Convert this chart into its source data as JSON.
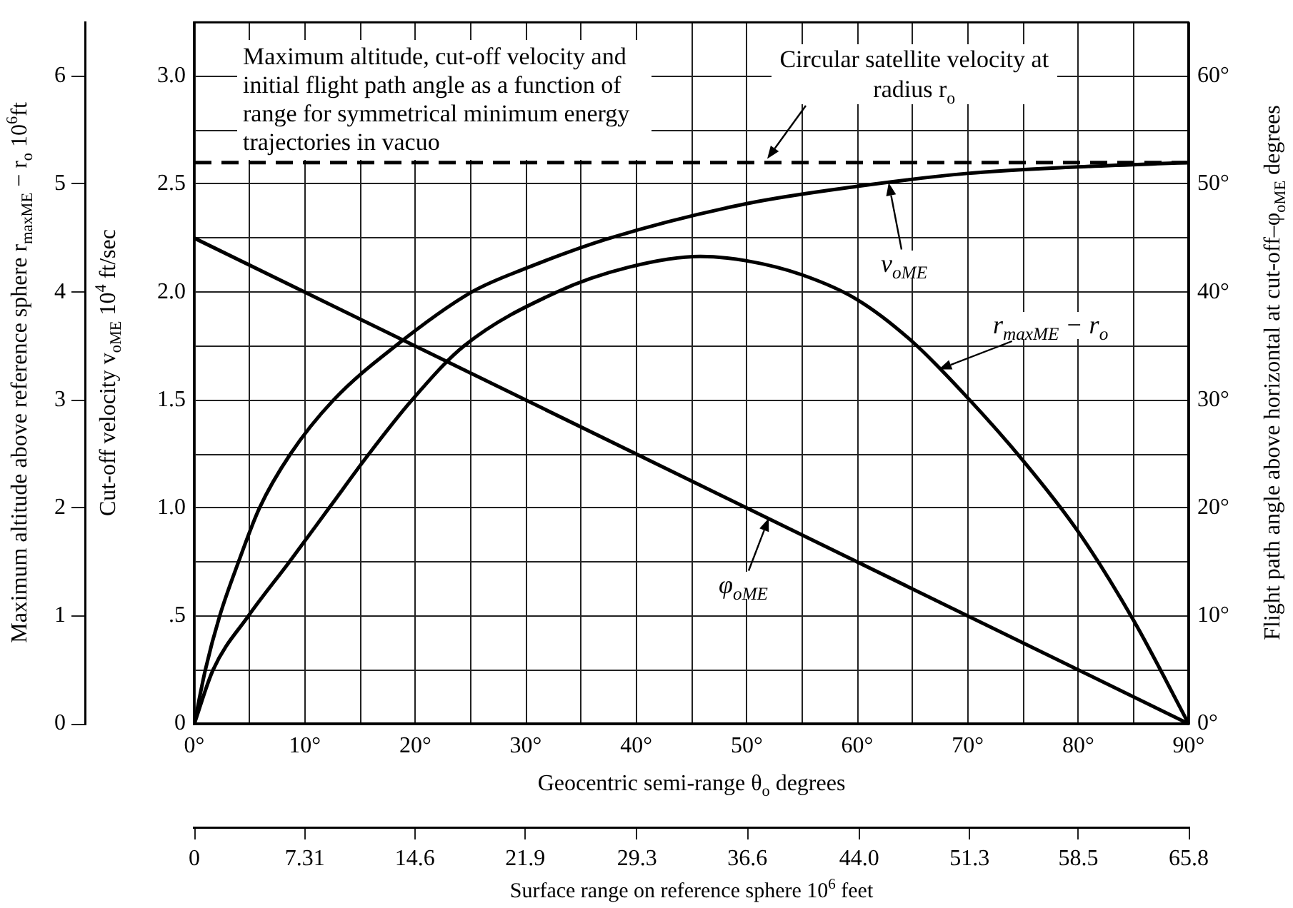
{
  "chart_data": {
    "type": "line",
    "title": "Maximum altitude, cut-off velocity and initial flight path angle as a function of range for symmetrical minimum energy trajectories in vacuo",
    "xlabel": "Geocentric semi-range θ$_{o}$ degrees",
    "x2label": "Surface range on reference sphere 10$^{6}$ feet",
    "ylabel": "Cut-off velocity v$_{oME}$ 10$^{4}$ ft/sec",
    "y2label": "Flight path angle above horizontal at cut-off–φ$_{oME}$ degrees",
    "y3label": "Maximum altitude above reference sphere r$_{maxME}$ − r$_{o}$ 10$^{6}$ft",
    "series": [
      {
        "name": "v$_{oME}$",
        "color": "#000000",
        "axis": "y",
        "x": [
          0,
          1,
          2.3,
          4.0,
          5.9,
          8.7,
          12.6,
          18.2,
          25.1,
          30,
          37.6,
          50,
          60,
          70,
          80,
          90
        ],
        "values": [
          0,
          0.25,
          0.5,
          0.75,
          1.0,
          1.25,
          1.5,
          1.75,
          2.0,
          2.11,
          2.25,
          2.41,
          2.49,
          2.55,
          2.58,
          2.6
        ]
      },
      {
        "name": "r$_{maxME}$ − r$_{o}$",
        "color": "#000000",
        "axis": "y3",
        "x": [
          0,
          1.7,
          4.9,
          8.6,
          12.2,
          15.8,
          19.7,
          24.4,
          32.8,
          39.3,
          45.8,
          50,
          55,
          60,
          65,
          70,
          75,
          80,
          85,
          90
        ],
        "values": [
          0,
          0.5,
          1.0,
          1.5,
          2.0,
          2.5,
          3.0,
          3.5,
          4.0,
          4.23,
          4.33,
          4.29,
          4.16,
          3.93,
          3.54,
          3.02,
          2.44,
          1.78,
          0.96,
          0
        ]
      },
      {
        "name": "φ$_{oME}$",
        "color": "#000000",
        "axis": "y2",
        "x": [
          0,
          90
        ],
        "values": [
          45,
          0
        ]
      }
    ],
    "xlim": [
      0,
      90
    ],
    "xticks": [
      {
        "value": 0,
        "label": "0°"
      },
      {
        "value": 5,
        "label": null
      },
      {
        "value": 10,
        "label": "10°"
      },
      {
        "value": 15,
        "label": null
      },
      {
        "value": 20,
        "label": "20°"
      },
      {
        "value": 25,
        "label": null
      },
      {
        "value": 30,
        "label": "30°"
      },
      {
        "value": 35,
        "label": null
      },
      {
        "value": 40,
        "label": "40°"
      },
      {
        "value": 45,
        "label": null
      },
      {
        "value": 50,
        "label": "50°"
      },
      {
        "value": 55,
        "label": null
      },
      {
        "value": 60,
        "label": "60°"
      },
      {
        "value": 65,
        "label": null
      },
      {
        "value": 70,
        "label": "70°"
      },
      {
        "value": 75,
        "label": null
      },
      {
        "value": 80,
        "label": "80°"
      },
      {
        "value": 85,
        "label": null
      },
      {
        "value": 90,
        "label": "90°"
      }
    ],
    "x2lim": [
      0,
      65.8
    ],
    "x2ticks": [
      0,
      7.31,
      14.6,
      21.9,
      29.3,
      36.6,
      {
        "value": 44.0,
        "label": "44.0"
      },
      51.3,
      58.5,
      65.8
    ],
    "ylim": [
      0,
      3.25
    ],
    "yticks": [
      0,
      {
        "value": 0.25,
        "label": null
      },
      {
        "value": 0.5,
        "label": ".5"
      },
      {
        "value": 0.75,
        "label": null
      },
      {
        "value": 1.0,
        "label": "1.0"
      },
      {
        "value": 1.25,
        "label": null
      },
      {
        "value": 1.5,
        "label": "1.5"
      },
      {
        "value": 1.75,
        "label": null
      },
      {
        "value": 2.0,
        "label": "2.0"
      },
      {
        "value": 2.25,
        "label": null
      },
      {
        "value": 2.5,
        "label": "2.5"
      },
      {
        "value": 2.75,
        "label": null
      },
      {
        "value": 3.0,
        "label": "3.0"
      }
    ],
    "y2lim": [
      0,
      65
    ],
    "y2ticks": [
      {
        "value": 0,
        "label": "0°"
      },
      {
        "value": 10,
        "label": "10°"
      },
      {
        "value": 20,
        "label": "20°"
      },
      {
        "value": 30,
        "label": "30°"
      },
      {
        "value": 40,
        "label": "40°"
      },
      {
        "value": 50,
        "label": "50°"
      },
      {
        "value": 60,
        "label": "60°"
      }
    ],
    "y3lim": [
      0,
      6.5
    ],
    "y3ticks": [
      0,
      1,
      2,
      3,
      4,
      5,
      6
    ],
    "ref_lines": [
      {
        "axis": "y",
        "value": 2.6,
        "label": "Circular satellite velocity at radius r$_{o}$",
        "color": "#000000",
        "line_style": "dashed"
      }
    ],
    "grid": true,
    "legend": "right",
    "marker": "none",
    "line_style": "solid"
  }
}
